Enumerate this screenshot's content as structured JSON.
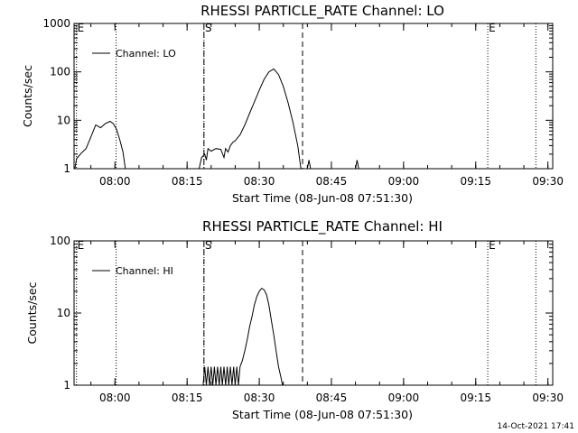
{
  "chart_data": [
    {
      "type": "line",
      "title": "RHESSI PARTICLE_RATE Channel: LO",
      "xlabel": "Start Time (08-Jun-08 07:51:30)",
      "ylabel": "Counts/sec",
      "y_scale": "log",
      "ylim": [
        1,
        1000
      ],
      "xlim": [
        "07:51:30",
        "09:31:00"
      ],
      "grid": false,
      "legend_placement": "top-left",
      "x_ticks": [
        "08:00",
        "08:15",
        "08:30",
        "08:45",
        "09:00",
        "09:15",
        "09:30"
      ],
      "y_ticks": [
        "1",
        "10",
        "100",
        "1000"
      ],
      "series": [
        {
          "name": "Channel: LO",
          "color": "#000000",
          "segments": [
            [
              [
                "07:51:40",
                1.0
              ],
              [
                "07:52:00",
                1.6
              ],
              [
                "07:53:00",
                2.1
              ],
              [
                "07:54:00",
                2.6
              ],
              [
                "07:55:00",
                4.5
              ],
              [
                "07:56:00",
                8.0
              ],
              [
                "07:57:00",
                7.0
              ],
              [
                "07:58:00",
                8.5
              ],
              [
                "07:59:00",
                9.5
              ],
              [
                "07:59:40",
                8.5
              ],
              [
                "08:00:20",
                6.5
              ],
              [
                "08:01:00",
                4.0
              ],
              [
                "08:01:40",
                2.2
              ],
              [
                "08:02:10",
                1.0
              ]
            ],
            [
              [
                "08:17:30",
                1.0
              ],
              [
                "08:18:00",
                1.7
              ],
              [
                "08:18:40",
                2.0
              ],
              [
                "08:19:00",
                1.5
              ],
              [
                "08:19:20",
                2.6
              ],
              [
                "08:20:00",
                2.3
              ],
              [
                "08:21:00",
                2.6
              ],
              [
                "08:22:00",
                2.5
              ],
              [
                "08:22:40",
                1.7
              ],
              [
                "08:23:00",
                2.6
              ],
              [
                "08:23:30",
                2.2
              ],
              [
                "08:24:00",
                3.0
              ],
              [
                "08:24:30",
                3.5
              ],
              [
                "08:25:00",
                3.8
              ],
              [
                "08:26:00",
                5.0
              ],
              [
                "08:27:00",
                8.0
              ],
              [
                "08:28:00",
                14.0
              ],
              [
                "08:29:00",
                24.0
              ],
              [
                "08:30:00",
                42.0
              ],
              [
                "08:31:00",
                70.0
              ],
              [
                "08:32:00",
                100.0
              ],
              [
                "08:33:00",
                115.0
              ],
              [
                "08:34:00",
                88.0
              ],
              [
                "08:35:00",
                50.0
              ],
              [
                "08:36:00",
                23.0
              ],
              [
                "08:37:00",
                9.0
              ],
              [
                "08:38:00",
                3.0
              ],
              [
                "08:38:40",
                1.0
              ]
            ],
            [
              [
                "08:40:00",
                1.0
              ],
              [
                "08:40:20",
                1.5
              ],
              [
                "08:40:40",
                1.0
              ]
            ],
            [
              [
                "08:50:00",
                1.0
              ],
              [
                "08:50:20",
                1.5
              ],
              [
                "08:50:40",
                1.0
              ]
            ]
          ]
        }
      ],
      "markers": [
        {
          "label": "E",
          "time": "07:52:00",
          "style": "dotted"
        },
        {
          "label": "",
          "time": "08:00:15",
          "style": "dotted"
        },
        {
          "label": "",
          "time": "08:18:30",
          "style": "dotted"
        },
        {
          "label": "S",
          "time": "08:18:30",
          "style": "dashed"
        },
        {
          "label": "",
          "time": "08:39:00",
          "style": "dashed"
        },
        {
          "label": "E",
          "time": "09:17:30",
          "style": "dotted"
        },
        {
          "label": "",
          "time": "09:27:30",
          "style": "dotted"
        }
      ]
    },
    {
      "type": "line",
      "title": "RHESSI PARTICLE_RATE Channel: HI",
      "xlabel": "Start Time (08-Jun-08 07:51:30)",
      "ylabel": "Counts/sec",
      "y_scale": "log",
      "ylim": [
        1,
        100
      ],
      "xlim": [
        "07:51:30",
        "09:31:00"
      ],
      "grid": false,
      "legend_placement": "top-left",
      "x_ticks": [
        "08:00",
        "08:15",
        "08:30",
        "08:45",
        "09:00",
        "09:15",
        "09:30"
      ],
      "y_ticks": [
        "1",
        "10",
        "100"
      ],
      "series": [
        {
          "name": "Channel: HI",
          "color": "#000000",
          "segments": [
            [
              [
                "08:18:20",
                1.0
              ],
              [
                "08:18:40",
                1.8
              ],
              [
                "08:19:00",
                1.0
              ],
              [
                "08:19:20",
                1.8
              ],
              [
                "08:19:40",
                1.0
              ],
              [
                "08:20:00",
                1.8
              ],
              [
                "08:20:20",
                1.0
              ],
              [
                "08:20:40",
                1.8
              ],
              [
                "08:21:00",
                1.0
              ],
              [
                "08:21:20",
                1.8
              ],
              [
                "08:21:40",
                1.0
              ],
              [
                "08:22:00",
                1.8
              ],
              [
                "08:22:20",
                1.0
              ],
              [
                "08:22:40",
                1.8
              ],
              [
                "08:23:00",
                1.0
              ],
              [
                "08:23:20",
                1.8
              ],
              [
                "08:23:40",
                1.0
              ],
              [
                "08:24:00",
                1.8
              ],
              [
                "08:24:20",
                1.0
              ],
              [
                "08:24:40",
                1.8
              ],
              [
                "08:25:00",
                1.0
              ],
              [
                "08:25:20",
                1.8
              ],
              [
                "08:25:40",
                1.0
              ],
              [
                "08:26:00",
                1.8
              ],
              [
                "08:26:30",
                2.2
              ],
              [
                "08:27:00",
                3.0
              ],
              [
                "08:27:30",
                4.3
              ],
              [
                "08:28:00",
                6.5
              ],
              [
                "08:28:30",
                9.0
              ],
              [
                "08:29:00",
                13.0
              ],
              [
                "08:29:30",
                17.0
              ],
              [
                "08:30:00",
                20.0
              ],
              [
                "08:30:30",
                22.0
              ],
              [
                "08:31:00",
                21.0
              ],
              [
                "08:31:30",
                18.0
              ],
              [
                "08:32:00",
                13.0
              ],
              [
                "08:32:30",
                8.0
              ],
              [
                "08:33:00",
                5.0
              ],
              [
                "08:33:30",
                3.0
              ],
              [
                "08:34:00",
                1.8
              ],
              [
                "08:34:30",
                1.3
              ],
              [
                "08:34:50",
                1.0
              ]
            ]
          ]
        }
      ],
      "markers": [
        {
          "label": "E",
          "time": "07:52:00",
          "style": "dotted"
        },
        {
          "label": "",
          "time": "08:00:15",
          "style": "dotted"
        },
        {
          "label": "",
          "time": "08:18:30",
          "style": "dotted"
        },
        {
          "label": "S",
          "time": "08:18:30",
          "style": "dashed"
        },
        {
          "label": "",
          "time": "08:39:00",
          "style": "dashed"
        },
        {
          "label": "E",
          "time": "09:17:30",
          "style": "dotted"
        },
        {
          "label": "",
          "time": "09:27:30",
          "style": "dotted"
        }
      ]
    }
  ],
  "footer": {
    "timestamp": "14-Oct-2021 17:41"
  }
}
